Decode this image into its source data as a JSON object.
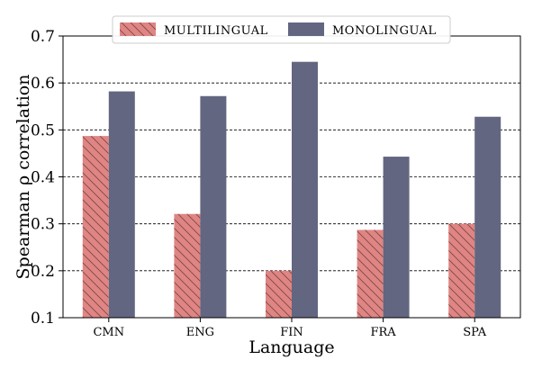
{
  "chart_data": {
    "type": "bar",
    "categories": [
      "CMN",
      "ENG",
      "FIN",
      "FRA",
      "SPA"
    ],
    "series": [
      {
        "name": "MULTILINGUAL",
        "values": [
          0.487,
          0.321,
          0.2,
          0.287,
          0.3
        ],
        "color": "#e08583",
        "hatch": "diagonal-backslash"
      },
      {
        "name": "MONOLINGUAL",
        "values": [
          0.582,
          0.572,
          0.645,
          0.443,
          0.528
        ],
        "color": "#636680",
        "hatch": "none"
      }
    ],
    "xlabel": "Language",
    "ylabel": "Spearman ρ correlation",
    "ylim": [
      0.1,
      0.7
    ],
    "yticks": [
      "0.1",
      "0.2",
      "0.3",
      "0.4",
      "0.5",
      "0.6",
      "0.7"
    ],
    "ytick_values": [
      0.1,
      0.2,
      0.3,
      0.4,
      0.5,
      0.6,
      0.7
    ],
    "grid": "horizontal dashed",
    "legend_position": "top-center"
  }
}
